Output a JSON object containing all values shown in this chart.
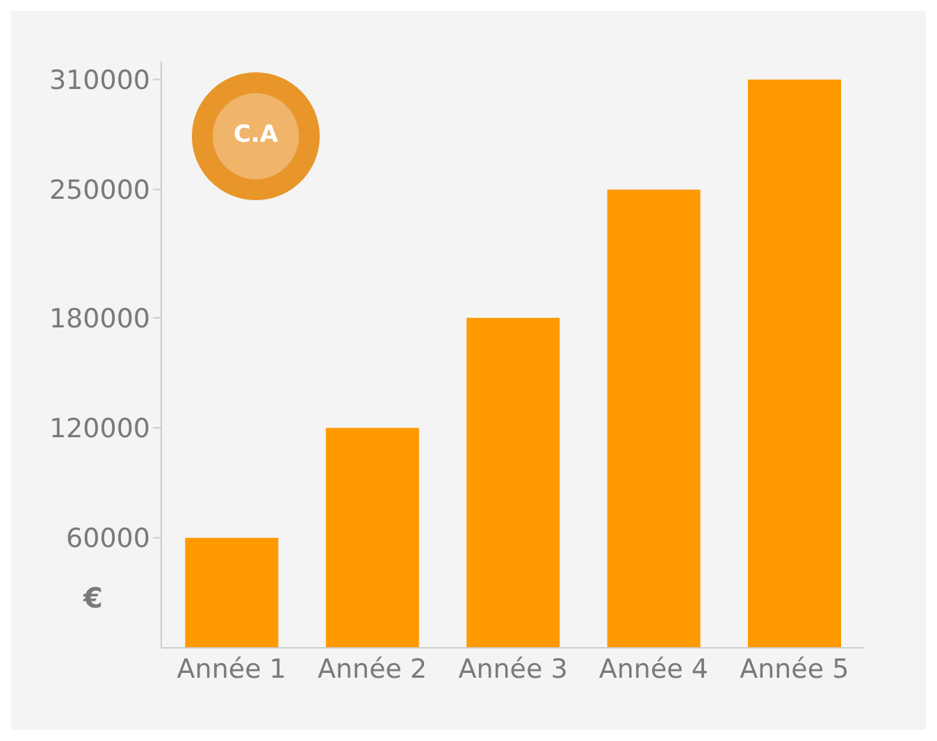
{
  "chart_data": {
    "type": "bar",
    "ylabel": "€",
    "annotations": [
      "C.A"
    ],
    "categories": [
      "Année 1",
      "Année 2",
      "Année 3",
      "Année 4",
      "Année 5"
    ],
    "values": [
      60000,
      120000,
      180000,
      250000,
      310000
    ],
    "color": "#ff9900",
    "ylim": [
      0,
      320000
    ],
    "yticks": [
      60000,
      120000,
      180000,
      250000,
      310000
    ],
    "grid": false,
    "legend": false
  }
}
